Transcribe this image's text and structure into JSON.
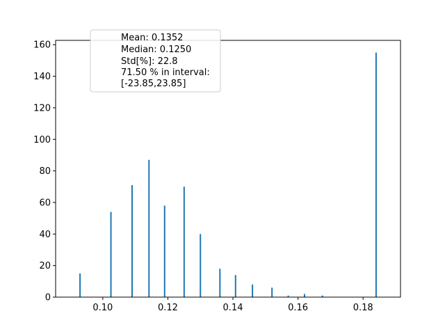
{
  "chart_data": {
    "type": "bar",
    "title": "",
    "xlabel": "",
    "ylabel": "",
    "xlim": [
      0.0855,
      0.1915
    ],
    "ylim": [
      0,
      162.75
    ],
    "x_ticks": [
      0.1,
      0.12,
      0.14,
      0.16,
      0.18
    ],
    "x_tick_labels": [
      "0.10",
      "0.12",
      "0.14",
      "0.16",
      "0.18"
    ],
    "y_ticks": [
      0,
      20,
      40,
      60,
      80,
      100,
      120,
      140,
      160
    ],
    "y_tick_labels": [
      "0",
      "20",
      "40",
      "60",
      "80",
      "100",
      "120",
      "140",
      "160"
    ],
    "bar_color": "#1f77b4",
    "bars": [
      {
        "x": 0.093,
        "y": 15
      },
      {
        "x": 0.1025,
        "y": 54
      },
      {
        "x": 0.109,
        "y": 71
      },
      {
        "x": 0.1142,
        "y": 87
      },
      {
        "x": 0.119,
        "y": 58
      },
      {
        "x": 0.125,
        "y": 70
      },
      {
        "x": 0.13,
        "y": 40
      },
      {
        "x": 0.136,
        "y": 18
      },
      {
        "x": 0.1408,
        "y": 14
      },
      {
        "x": 0.146,
        "y": 8
      },
      {
        "x": 0.152,
        "y": 6
      },
      {
        "x": 0.157,
        "y": 1
      },
      {
        "x": 0.162,
        "y": 2
      },
      {
        "x": 0.1675,
        "y": 1
      },
      {
        "x": 0.184,
        "y": 155
      }
    ],
    "legend": {
      "placement": "upper-left",
      "lines": [
        "Mean: 0.1352",
        "Median: 0.1250",
        "Std[%]: 22.8",
        "71.50 % in interval:",
        "[-23.85,23.85]"
      ]
    }
  }
}
